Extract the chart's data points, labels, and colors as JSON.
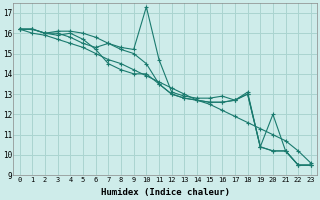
{
  "xlabel": "Humidex (Indice chaleur)",
  "background_color": "#ceecea",
  "grid_color": "#aad4d0",
  "line_color": "#1a7a6e",
  "xlim": [
    -0.5,
    23.5
  ],
  "ylim": [
    9,
    17.5
  ],
  "yticks": [
    9,
    10,
    11,
    12,
    13,
    14,
    15,
    16,
    17
  ],
  "xticks": [
    0,
    1,
    2,
    3,
    4,
    5,
    6,
    7,
    8,
    9,
    10,
    11,
    12,
    13,
    14,
    15,
    16,
    17,
    18,
    19,
    20,
    21,
    22,
    23
  ],
  "series": [
    [
      16.2,
      16.2,
      16.0,
      16.1,
      16.1,
      16.0,
      15.8,
      15.5,
      15.3,
      15.2,
      17.3,
      14.7,
      13.1,
      12.9,
      12.8,
      12.8,
      12.9,
      12.7,
      13.1,
      10.4,
      10.2,
      10.2,
      9.5,
      9.5
    ],
    [
      16.2,
      16.0,
      15.9,
      15.7,
      15.5,
      15.3,
      15.0,
      14.7,
      14.5,
      14.2,
      13.9,
      13.6,
      13.3,
      13.0,
      12.7,
      12.5,
      12.2,
      11.9,
      11.6,
      11.3,
      11.0,
      10.7,
      10.2,
      9.6
    ],
    [
      16.2,
      16.2,
      16.0,
      16.0,
      15.8,
      15.5,
      15.3,
      15.5,
      15.2,
      15.0,
      14.5,
      13.5,
      13.0,
      12.8,
      12.7,
      12.6,
      12.6,
      12.7,
      13.0,
      10.4,
      12.0,
      10.2,
      9.5,
      9.5
    ],
    [
      16.2,
      16.2,
      16.0,
      15.9,
      16.0,
      15.7,
      15.2,
      14.5,
      14.2,
      14.0,
      14.0,
      13.5,
      13.0,
      12.8,
      12.7,
      12.6,
      12.6,
      12.7,
      13.0,
      10.4,
      10.2,
      10.2,
      9.5,
      9.5
    ]
  ]
}
